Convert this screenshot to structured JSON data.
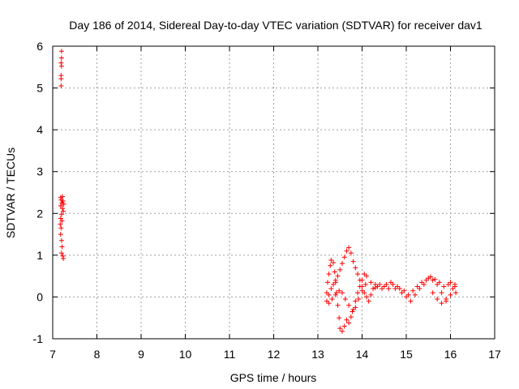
{
  "chart_data": {
    "type": "scatter",
    "title": "Day 186 of 2014, Sidereal Day-to-day VTEC variation (SDTVAR) for receiver dav1",
    "xlabel": "GPS time / hours",
    "ylabel": "SDTVAR / TECUs",
    "xlim": [
      7,
      17
    ],
    "ylim": [
      -1,
      6
    ],
    "xticks": [
      "7",
      "8",
      "9",
      "10",
      "11",
      "12",
      "13",
      "14",
      "15",
      "16",
      "17"
    ],
    "yticks": [
      "-1",
      "0",
      "1",
      "2",
      "3",
      "4",
      "5",
      "6"
    ],
    "grid": true,
    "marker": "+",
    "color": "#ff0000",
    "series": [
      {
        "name": "SDTVAR",
        "points": [
          [
            7.2,
            5.88
          ],
          [
            7.2,
            5.72
          ],
          [
            7.19,
            5.6
          ],
          [
            7.2,
            5.52
          ],
          [
            7.19,
            5.3
          ],
          [
            7.19,
            5.22
          ],
          [
            7.19,
            5.05
          ],
          [
            7.18,
            2.38
          ],
          [
            7.22,
            2.4
          ],
          [
            7.19,
            2.32
          ],
          [
            7.23,
            2.3
          ],
          [
            7.21,
            2.25
          ],
          [
            7.25,
            2.22
          ],
          [
            7.18,
            2.18
          ],
          [
            7.22,
            2.12
          ],
          [
            7.24,
            2.05
          ],
          [
            7.2,
            1.98
          ],
          [
            7.18,
            1.88
          ],
          [
            7.21,
            1.82
          ],
          [
            7.17,
            1.74
          ],
          [
            7.19,
            1.65
          ],
          [
            7.18,
            1.5
          ],
          [
            7.2,
            1.35
          ],
          [
            7.21,
            1.2
          ],
          [
            7.2,
            1.05
          ],
          [
            7.23,
            0.98
          ],
          [
            7.24,
            0.92
          ],
          [
            13.2,
            0.1
          ],
          [
            13.22,
            0.35
          ],
          [
            13.25,
            0.55
          ],
          [
            13.28,
            0.75
          ],
          [
            13.3,
            0.88
          ],
          [
            13.35,
            0.82
          ],
          [
            13.38,
            0.6
          ],
          [
            13.4,
            0.35
          ],
          [
            13.42,
            0.1
          ],
          [
            13.45,
            -0.2
          ],
          [
            13.48,
            -0.5
          ],
          [
            13.5,
            -0.75
          ],
          [
            13.55,
            -0.82
          ],
          [
            13.6,
            -0.7
          ],
          [
            13.65,
            -0.55
          ],
          [
            13.7,
            -0.62
          ],
          [
            13.75,
            -0.48
          ],
          [
            13.8,
            -0.3
          ],
          [
            13.85,
            -0.1
          ],
          [
            13.9,
            0.1
          ],
          [
            13.95,
            0.25
          ],
          [
            14.0,
            0.4
          ],
          [
            14.05,
            0.55
          ],
          [
            14.1,
            0.5
          ],
          [
            13.2,
            -0.1
          ],
          [
            13.25,
            0.05
          ],
          [
            13.3,
            0.2
          ],
          [
            13.35,
            0.3
          ],
          [
            13.4,
            0.4
          ],
          [
            13.45,
            0.5
          ],
          [
            13.5,
            0.65
          ],
          [
            13.55,
            0.8
          ],
          [
            13.6,
            0.95
          ],
          [
            13.65,
            1.1
          ],
          [
            13.7,
            1.18
          ],
          [
            13.75,
            1.05
          ],
          [
            13.8,
            0.85
          ],
          [
            13.85,
            0.7
          ],
          [
            13.9,
            0.55
          ],
          [
            13.95,
            0.4
          ],
          [
            14.0,
            0.25
          ],
          [
            14.05,
            0.1
          ],
          [
            14.1,
            0.0
          ],
          [
            14.15,
            -0.1
          ],
          [
            14.2,
            0.05
          ],
          [
            14.25,
            0.2
          ],
          [
            14.3,
            0.3
          ],
          [
            14.35,
            0.25
          ],
          [
            13.25,
            -0.15
          ],
          [
            13.32,
            -0.05
          ],
          [
            13.4,
            0.05
          ],
          [
            13.48,
            0.15
          ],
          [
            13.55,
            0.1
          ],
          [
            13.62,
            -0.05
          ],
          [
            13.7,
            -0.2
          ],
          [
            13.78,
            -0.35
          ],
          [
            13.85,
            -0.25
          ],
          [
            13.92,
            -0.05
          ],
          [
            14.0,
            0.15
          ],
          [
            14.08,
            0.3
          ],
          [
            14.2,
            0.35
          ],
          [
            14.3,
            0.22
          ],
          [
            14.4,
            0.3
          ],
          [
            14.5,
            0.25
          ],
          [
            14.6,
            0.2
          ],
          [
            14.7,
            0.3
          ],
          [
            14.8,
            0.25
          ],
          [
            14.9,
            0.1
          ],
          [
            15.0,
            0.0
          ],
          [
            15.1,
            -0.1
          ],
          [
            15.2,
            0.05
          ],
          [
            15.3,
            0.2
          ],
          [
            15.4,
            0.3
          ],
          [
            15.5,
            0.45
          ],
          [
            15.6,
            0.4
          ],
          [
            15.7,
            0.3
          ],
          [
            15.8,
            0.1
          ],
          [
            15.9,
            -0.1
          ],
          [
            16.0,
            0.05
          ],
          [
            16.1,
            0.25
          ],
          [
            15.6,
            0.1
          ],
          [
            15.7,
            -0.05
          ],
          [
            15.8,
            -0.15
          ],
          [
            15.9,
            -0.05
          ],
          [
            16.05,
            0.2
          ],
          [
            14.45,
            0.2
          ],
          [
            14.55,
            0.3
          ],
          [
            14.65,
            0.35
          ],
          [
            14.75,
            0.2
          ],
          [
            14.85,
            0.2
          ],
          [
            14.95,
            0.15
          ],
          [
            15.05,
            0.05
          ],
          [
            15.15,
            0.15
          ],
          [
            15.25,
            0.25
          ],
          [
            15.35,
            0.35
          ],
          [
            15.45,
            0.4
          ],
          [
            15.55,
            0.48
          ],
          [
            15.65,
            0.42
          ],
          [
            15.75,
            0.35
          ],
          [
            15.85,
            0.25
          ],
          [
            15.95,
            0.3
          ],
          [
            16.0,
            0.35
          ],
          [
            16.1,
            0.3
          ],
          [
            16.12,
            0.1
          ]
        ]
      }
    ]
  }
}
